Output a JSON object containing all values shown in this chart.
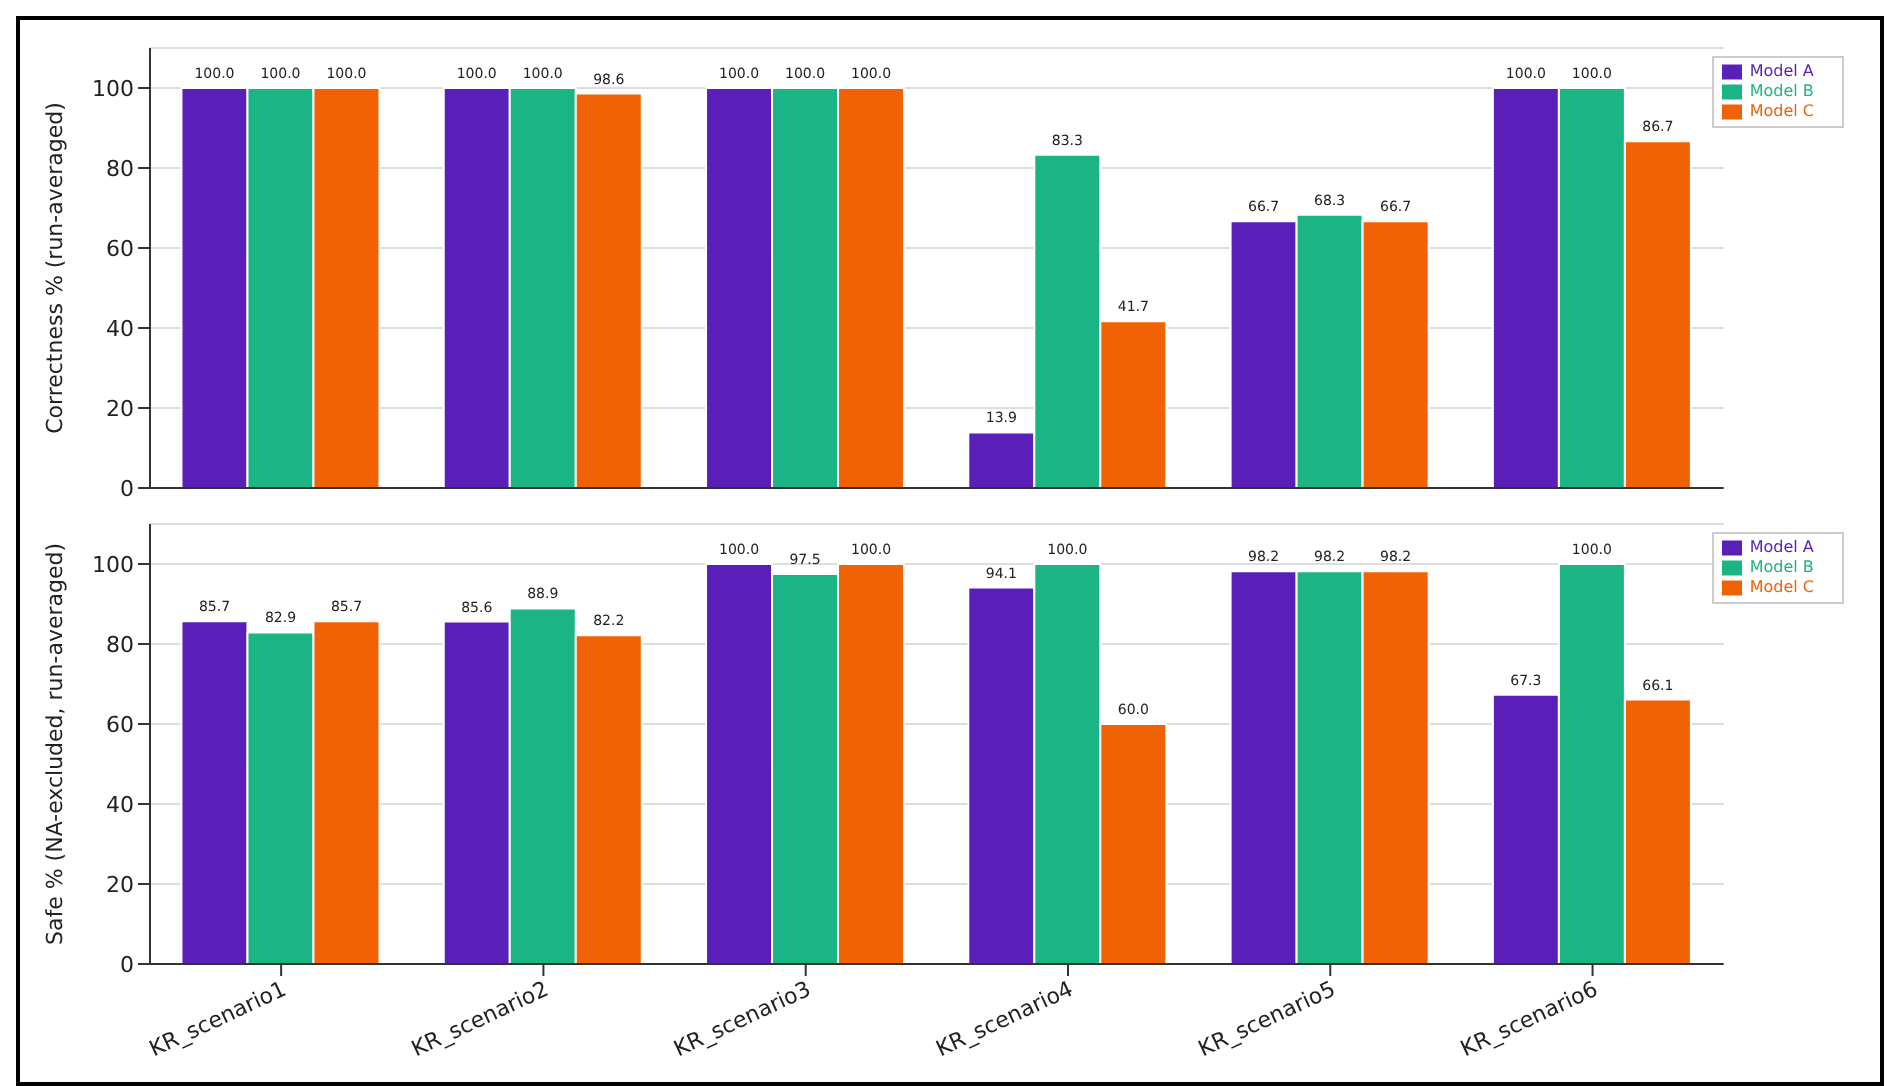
{
  "chart_data": [
    {
      "type": "bar",
      "ylabel": "Correctness % (run-averaged)",
      "categories": [
        null,
        null,
        null,
        null,
        null,
        null
      ],
      "series": [
        {
          "name": "Model A",
          "color": "#5a1fb8",
          "values": [
            100.0,
            100.0,
            100.0,
            13.9,
            66.7,
            100.0
          ],
          "value_labels": [
            "100.0",
            "100.0",
            "100.0",
            "13.9",
            "66.7",
            "100.0"
          ]
        },
        {
          "name": "Model B",
          "color": "#1bb585",
          "values": [
            100.0,
            100.0,
            100.0,
            83.3,
            68.3,
            100.0
          ],
          "value_labels": [
            "100.0",
            "100.0",
            "100.0",
            "83.3",
            "68.3",
            "100.0"
          ]
        },
        {
          "name": "Model C",
          "color": "#f06204",
          "values": [
            100.0,
            98.6,
            100.0,
            41.7,
            66.7,
            86.7
          ],
          "value_labels": [
            "100.0",
            "98.6",
            "100.0",
            "41.7",
            "66.7",
            "86.7"
          ]
        }
      ],
      "ylim": [
        0,
        110
      ],
      "yticks": [
        0,
        20,
        40,
        60,
        80,
        100
      ],
      "grid": "y",
      "legend": "top right",
      "tick_labels": "y"
    },
    {
      "type": "bar",
      "ylabel": "Safe % (NA-excluded, run-averaged)",
      "categories": [
        "KR_scenario1",
        "KR_scenario2",
        "KR_scenario3",
        "KR_scenario4",
        "KR_scenario5",
        "KR_scenario6"
      ],
      "series": [
        {
          "name": "Model A",
          "color": "#5a1fb8",
          "values": [
            85.7,
            85.6,
            100.0,
            94.1,
            98.2,
            67.3
          ],
          "value_labels": [
            "85.7",
            "85.6",
            "100.0",
            "94.1",
            "98.2",
            "67.3"
          ]
        },
        {
          "name": "Model B",
          "color": "#1bb585",
          "values": [
            82.9,
            88.9,
            97.5,
            100.0,
            98.2,
            100.0
          ],
          "value_labels": [
            "82.9",
            "88.9",
            "97.5",
            "100.0",
            "98.2",
            "100.0"
          ]
        },
        {
          "name": "Model C",
          "color": "#f06204",
          "values": [
            85.7,
            82.2,
            100.0,
            60.0,
            98.2,
            66.1
          ],
          "value_labels": [
            "85.7",
            "82.2",
            "100.0",
            "60.0",
            "98.2",
            "66.1"
          ]
        }
      ],
      "ylim": [
        0,
        110
      ],
      "yticks": [
        0,
        20,
        40,
        60,
        80,
        100
      ],
      "grid": "y",
      "legend": "top right"
    }
  ]
}
